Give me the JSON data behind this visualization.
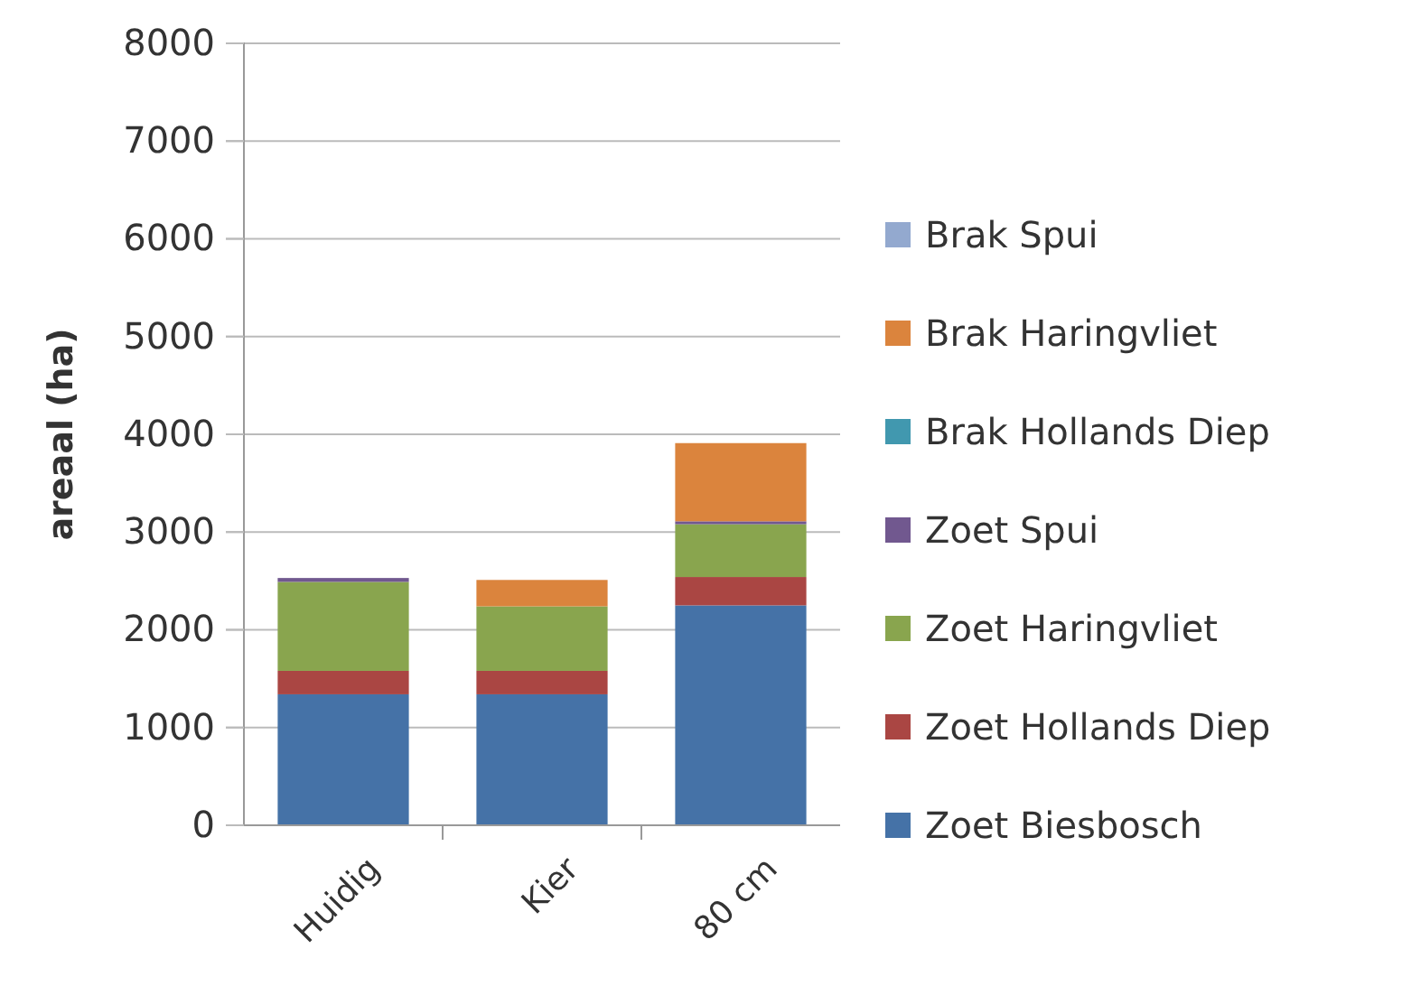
{
  "chart_data": {
    "type": "bar",
    "stacked": true,
    "ylabel": "areaal (ha)",
    "categories": [
      "Huidig",
      "Kier",
      "80 cm"
    ],
    "series": [
      {
        "name": "Zoet Biesbosch",
        "color": "#4572a7",
        "values": [
          1340,
          1340,
          2250
        ]
      },
      {
        "name": "Zoet Hollands Diep",
        "color": "#aa4643",
        "values": [
          240,
          240,
          290
        ]
      },
      {
        "name": "Zoet Haringvliet",
        "color": "#89a54e",
        "values": [
          910,
          660,
          540
        ]
      },
      {
        "name": "Zoet Spui",
        "color": "#71588f",
        "values": [
          40,
          0,
          30
        ]
      },
      {
        "name": "Brak Hollands Diep",
        "color": "#4198af",
        "values": [
          0,
          0,
          0
        ]
      },
      {
        "name": "Brak Haringvliet",
        "color": "#db843d",
        "values": [
          0,
          270,
          800
        ]
      },
      {
        "name": "Brak Spui",
        "color": "#93a9cf",
        "values": [
          0,
          0,
          0
        ]
      }
    ],
    "ylim": [
      0,
      8000
    ],
    "yticks": [
      0,
      1000,
      2000,
      3000,
      4000,
      5000,
      6000,
      7000,
      8000
    ],
    "grid": "y",
    "legend": "right"
  }
}
